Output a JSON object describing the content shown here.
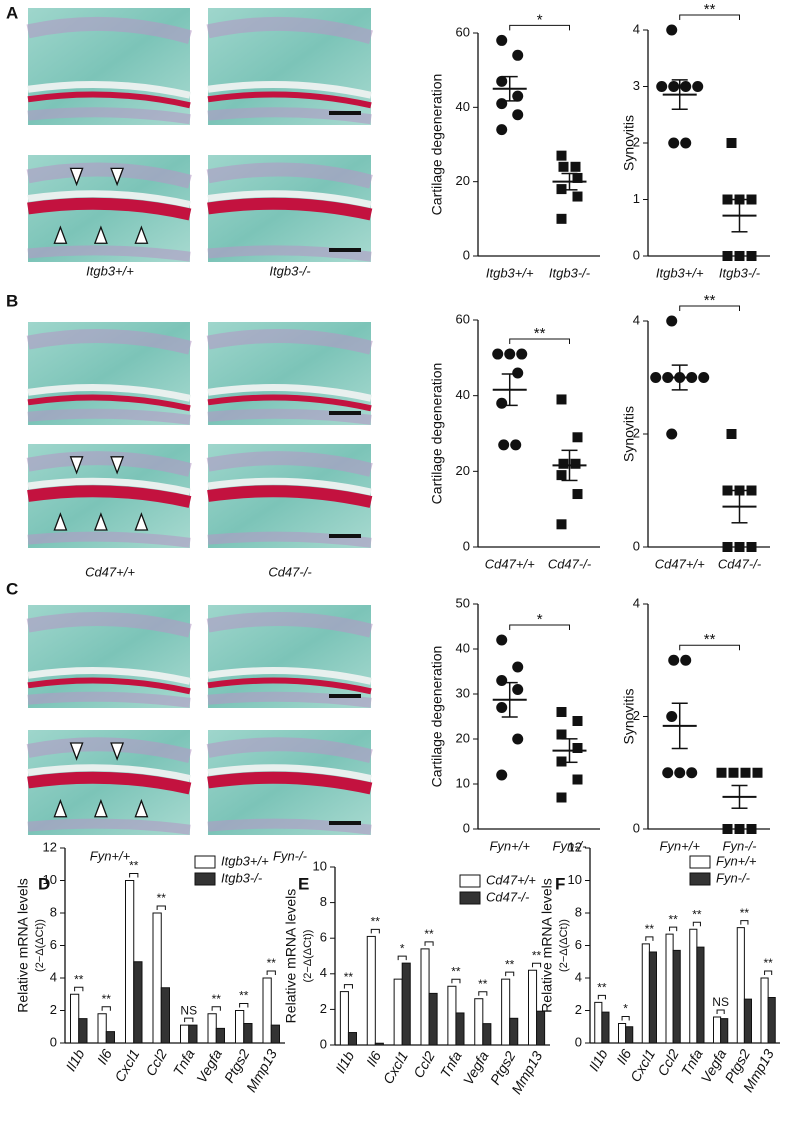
{
  "panels": [
    "A",
    "B",
    "C",
    "D",
    "E",
    "F"
  ],
  "chart_data": [
    {
      "type": "dotplot",
      "ylabel": "Cartilage degeneration",
      "categories": [
        "Itgb3+/+",
        "Itgb3-/-"
      ],
      "values": [
        [
          58,
          54,
          47,
          43,
          41,
          38,
          34
        ],
        [
          27,
          24,
          24,
          21,
          18,
          16,
          10
        ]
      ],
      "significance": "*",
      "ylim": [
        0,
        60
      ],
      "yticks": [
        0,
        20,
        40,
        60
      ]
    },
    {
      "type": "dotplot",
      "ylabel": "Synovitis",
      "categories": [
        "Itgb3+/+",
        "Itgb3-/-"
      ],
      "values": [
        [
          4,
          3,
          3,
          3,
          3,
          2,
          2
        ],
        [
          2,
          1,
          1,
          1,
          0,
          0,
          0
        ]
      ],
      "significance": "**",
      "ylim": [
        0,
        4
      ],
      "yticks": [
        0,
        1,
        2,
        3,
        4
      ]
    },
    {
      "type": "dotplot",
      "ylabel": "Cartilage degeneration",
      "categories": [
        "Cd47+/+",
        "Cd47-/-"
      ],
      "values": [
        [
          51,
          51,
          51,
          46,
          38,
          27,
          27
        ],
        [
          39,
          29,
          22,
          22,
          19,
          14,
          6
        ]
      ],
      "significance": "**",
      "ylim": [
        0,
        60
      ],
      "yticks": [
        0,
        20,
        40,
        60
      ]
    },
    {
      "type": "dotplot",
      "ylabel": "Synovitis",
      "categories": [
        "Cd47+/+",
        "Cd47-/-"
      ],
      "values": [
        [
          4,
          3,
          3,
          3,
          3,
          3,
          2
        ],
        [
          2,
          1,
          1,
          1,
          0,
          0,
          0
        ]
      ],
      "significance": "**",
      "ylim": [
        0,
        4
      ],
      "yticks": [
        0,
        2,
        4
      ]
    },
    {
      "type": "dotplot",
      "ylabel": "Cartilage degeneration",
      "categories": [
        "Fyn+/+",
        "Fyn-/-"
      ],
      "values": [
        [
          42,
          36,
          33,
          31,
          27,
          20,
          12
        ],
        [
          26,
          24,
          21,
          18,
          15,
          11,
          7
        ]
      ],
      "significance": "*",
      "ylim": [
        0,
        50
      ],
      "yticks": [
        0,
        10,
        20,
        30,
        40,
        50
      ]
    },
    {
      "type": "dotplot",
      "ylabel": "Synovitis",
      "categories": [
        "Fyn+/+",
        "Fyn-/-"
      ],
      "values": [
        [
          3,
          3,
          2,
          1,
          1,
          1
        ],
        [
          1,
          1,
          1,
          1,
          0,
          0,
          0
        ]
      ],
      "significance": "**",
      "ylim": [
        0,
        4
      ],
      "yticks": [
        0,
        2,
        4
      ]
    },
    {
      "type": "bar",
      "ylabel": "Relative mRNA levels",
      "ylabel_unit": "(2−Δ(ΔCt))",
      "categories": [
        "Il1b",
        "Il6",
        "Cxcl1",
        "Ccl2",
        "Tnfa",
        "Vegfa",
        "Ptgs2",
        "Mmp13"
      ],
      "series": [
        {
          "name": "Itgb3+/+",
          "color": "#ffffff",
          "values": [
            3,
            1.8,
            10,
            8,
            1.1,
            1.8,
            2,
            4
          ]
        },
        {
          "name": "Itgb3-/-",
          "color": "#333333",
          "values": [
            1.5,
            0.7,
            5,
            3.4,
            1.1,
            0.9,
            1.2,
            1.1
          ]
        }
      ],
      "significance": [
        "**",
        "**",
        "**",
        "**",
        "NS",
        "**",
        "**",
        "**"
      ],
      "ylim": [
        0,
        12
      ],
      "yticks": [
        0,
        2,
        4,
        6,
        8,
        10,
        12
      ]
    },
    {
      "type": "bar",
      "ylabel": "Relative mRNA levels",
      "ylabel_unit": "(2−Δ(ΔCt))",
      "categories": [
        "Il1b",
        "Il6",
        "Cxcl1",
        "Ccl2",
        "Tnfa",
        "Vegfa",
        "Ptgs2",
        "Mmp13"
      ],
      "series": [
        {
          "name": "Cd47+/+",
          "color": "#ffffff",
          "values": [
            3,
            6.1,
            3.7,
            5.4,
            3.3,
            2.6,
            3.7,
            4.2
          ]
        },
        {
          "name": "Cd47-/-",
          "color": "#333333",
          "values": [
            0.7,
            0.1,
            4.6,
            2.9,
            1.8,
            1.2,
            1.5,
            1.9
          ]
        }
      ],
      "significance": [
        "**",
        "**",
        "*",
        "**",
        "**",
        "**",
        "**",
        "**"
      ],
      "ylim": [
        0,
        10
      ],
      "yticks": [
        0,
        2,
        4,
        6,
        8,
        10
      ]
    },
    {
      "type": "bar",
      "ylabel": "Relative mRNA levels",
      "ylabel_unit": "(2−Δ(ΔCt))",
      "categories": [
        "Il1b",
        "Il6",
        "Cxcl1",
        "Ccl2",
        "Tnfa",
        "Vegfa",
        "Ptgs2",
        "Mmp13"
      ],
      "series": [
        {
          "name": "Fyn+/+",
          "color": "#ffffff",
          "values": [
            2.5,
            1.2,
            6.1,
            6.7,
            7,
            1.6,
            7.1,
            4
          ]
        },
        {
          "name": "Fyn-/-",
          "color": "#333333",
          "values": [
            1.9,
            1,
            5.6,
            5.7,
            5.9,
            1.5,
            2.7,
            2.8
          ]
        }
      ],
      "significance": [
        "**",
        "*",
        "**",
        "**",
        "**",
        "NS",
        "**",
        "**"
      ],
      "ylim": [
        0,
        12
      ],
      "yticks": [
        0,
        2,
        4,
        6,
        8,
        10,
        12
      ]
    }
  ]
}
